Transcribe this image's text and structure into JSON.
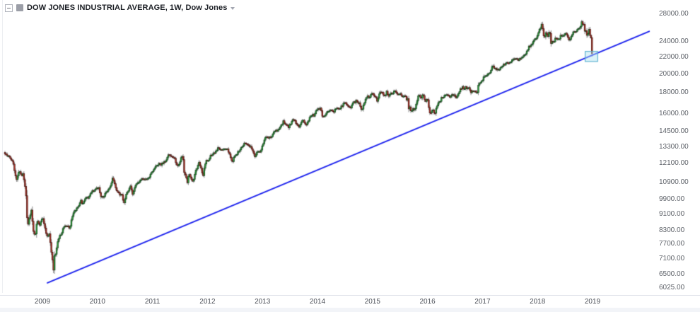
{
  "header": {
    "title": "DOW JONES INDUSTRIAL AVERAGE, 1W, Dow Jones",
    "icons": {
      "collapse": "minus-box-icon",
      "instrument": "gray-square-glyph",
      "more": "caret-down-icon"
    }
  },
  "chart_data": {
    "type": "candlestick",
    "title": "DOW JONES INDUSTRIAL AVERAGE",
    "interval": "1W",
    "source": "Dow Jones",
    "scale": "logarithmic",
    "grid": "off",
    "x_axis": {
      "tick_labels": [
        "2009",
        "2010",
        "2011",
        "2012",
        "2013",
        "2014",
        "2015",
        "2016",
        "2017",
        "2018",
        "2019"
      ],
      "data_start_year": 2008.3,
      "data_end_year": 2018.99
    },
    "y_axis": {
      "side": "right",
      "ticks": [
        {
          "price": 28000,
          "label": "28000.00"
        },
        {
          "price": 24000,
          "label": "24000.00"
        },
        {
          "price": 22000,
          "label": "22000.00"
        },
        {
          "price": 20000,
          "label": "20000.00"
        },
        {
          "price": 18000,
          "label": "18000.00"
        },
        {
          "price": 16000,
          "label": "16000.00"
        },
        {
          "price": 14500,
          "label": "14500.00"
        },
        {
          "price": 13300,
          "label": "13300.00"
        },
        {
          "price": 12100,
          "label": "12100.00"
        },
        {
          "price": 10900,
          "label": "10900.00"
        },
        {
          "price": 9900,
          "label": "9900.00"
        },
        {
          "price": 9100,
          "label": "9100.00"
        },
        {
          "price": 8300,
          "label": "8300.00"
        },
        {
          "price": 7700,
          "label": "7700.00"
        },
        {
          "price": 7100,
          "label": "7100.00"
        },
        {
          "price": 6500,
          "label": "6500.00"
        },
        {
          "price": 6025,
          "label": "6025.00"
        }
      ],
      "visible_range": [
        5740,
        30370
      ]
    },
    "style": {
      "up": "#2da33c",
      "up_border": "#173a1c",
      "down": "#b03a2e",
      "down_border": "#3c120e",
      "wick": "#8c8c8c",
      "background": "#ffffff"
    },
    "trendline": {
      "from": [
        2009.09,
        6202
      ],
      "to": [
        2020.03,
        25420
      ],
      "color": "#2026ee",
      "width": 2
    },
    "highlight_box": {
      "t_from": 2018.86,
      "t_to": 2019.1,
      "price_from": 21430,
      "price_to": 22760,
      "border_color": "#4aa8cc",
      "fill_color": "rgba(176,226,240,0.45)"
    },
    "weekly_close_anchors": [
      [
        2008.3,
        12891
      ],
      [
        2008.36,
        12638
      ],
      [
        2008.42,
        12479
      ],
      [
        2008.47,
        12209
      ],
      [
        2008.5,
        11346
      ],
      [
        2008.53,
        11100
      ],
      [
        2008.58,
        11628
      ],
      [
        2008.62,
        11326
      ],
      [
        2008.65,
        11422
      ],
      [
        2008.7,
        10325
      ],
      [
        2008.73,
        8451
      ],
      [
        2008.76,
        8852
      ],
      [
        2008.8,
        9325
      ],
      [
        2008.83,
        8378
      ],
      [
        2008.87,
        8046
      ],
      [
        2008.9,
        8829
      ],
      [
        2008.93,
        8635
      ],
      [
        2008.96,
        8579
      ],
      [
        2009.0,
        9035
      ],
      [
        2009.03,
        8599
      ],
      [
        2009.06,
        8281
      ],
      [
        2009.08,
        8078
      ],
      [
        2009.1,
        8001
      ],
      [
        2009.12,
        8280
      ],
      [
        2009.14,
        7850
      ],
      [
        2009.16,
        7366
      ],
      [
        2009.18,
        7063
      ],
      [
        2009.2,
        6627
      ],
      [
        2009.22,
        7224
      ],
      [
        2009.24,
        7278
      ],
      [
        2009.27,
        7776
      ],
      [
        2009.3,
        8018
      ],
      [
        2009.35,
        8212
      ],
      [
        2009.4,
        8574
      ],
      [
        2009.45,
        8500
      ],
      [
        2009.5,
        8447
      ],
      [
        2009.55,
        9093
      ],
      [
        2009.6,
        9321
      ],
      [
        2009.65,
        9505
      ],
      [
        2009.7,
        9820
      ],
      [
        2009.73,
        9665
      ],
      [
        2009.78,
        10023
      ],
      [
        2009.83,
        9972
      ],
      [
        2009.88,
        10328
      ],
      [
        2009.92,
        10388
      ],
      [
        2009.98,
        10520
      ],
      [
        2010.02,
        10618
      ],
      [
        2010.07,
        10012
      ],
      [
        2010.12,
        10099
      ],
      [
        2010.18,
        10403
      ],
      [
        2010.23,
        10625
      ],
      [
        2010.28,
        11204
      ],
      [
        2010.33,
        10620
      ],
      [
        2010.36,
        10380
      ],
      [
        2010.4,
        10193
      ],
      [
        2010.44,
        10211
      ],
      [
        2010.48,
        9686
      ],
      [
        2010.52,
        10198
      ],
      [
        2010.56,
        10424
      ],
      [
        2010.6,
        10654
      ],
      [
        2010.64,
        10213
      ],
      [
        2010.68,
        10608
      ],
      [
        2010.72,
        10829
      ],
      [
        2010.78,
        11006
      ],
      [
        2010.83,
        11118
      ],
      [
        2010.88,
        11092
      ],
      [
        2010.93,
        11192
      ],
      [
        2011.0,
        11578
      ],
      [
        2011.06,
        11892
      ],
      [
        2011.12,
        12092
      ],
      [
        2011.16,
        12044
      ],
      [
        2011.2,
        12221
      ],
      [
        2011.25,
        12320
      ],
      [
        2011.3,
        12810
      ],
      [
        2011.35,
        12596
      ],
      [
        2011.4,
        12512
      ],
      [
        2011.45,
        11935
      ],
      [
        2011.49,
        12004
      ],
      [
        2011.52,
        12582
      ],
      [
        2011.55,
        12724
      ],
      [
        2011.58,
        11445
      ],
      [
        2011.61,
        11269
      ],
      [
        2011.64,
        10818
      ],
      [
        2011.66,
        11509
      ],
      [
        2011.69,
        11240
      ],
      [
        2011.72,
        10913
      ],
      [
        2011.75,
        11103
      ],
      [
        2011.78,
        11644
      ],
      [
        2011.81,
        11809
      ],
      [
        2011.84,
        12231
      ],
      [
        2011.87,
        11983
      ],
      [
        2011.89,
        11796
      ],
      [
        2011.92,
        11232
      ],
      [
        2011.95,
        12019
      ],
      [
        2011.98,
        12294
      ],
      [
        2012.01,
        12218
      ],
      [
        2012.05,
        12660
      ],
      [
        2012.1,
        12801
      ],
      [
        2012.15,
        12922
      ],
      [
        2012.2,
        13233
      ],
      [
        2012.25,
        13080
      ],
      [
        2012.3,
        13060
      ],
      [
        2012.35,
        13228
      ],
      [
        2012.4,
        12821
      ],
      [
        2012.43,
        12454
      ],
      [
        2012.45,
        12119
      ],
      [
        2012.48,
        12554
      ],
      [
        2012.53,
        12777
      ],
      [
        2012.58,
        13076
      ],
      [
        2012.63,
        13306
      ],
      [
        2012.68,
        13593
      ],
      [
        2012.72,
        13437
      ],
      [
        2012.77,
        13329
      ],
      [
        2012.82,
        13107
      ],
      [
        2012.86,
        12588
      ],
      [
        2012.89,
        12810
      ],
      [
        2012.93,
        13026
      ],
      [
        2012.97,
        12938
      ],
      [
        2013.0,
        13435
      ],
      [
        2013.05,
        13993
      ],
      [
        2013.1,
        13982
      ],
      [
        2013.15,
        14009
      ],
      [
        2013.2,
        14397
      ],
      [
        2013.25,
        14547
      ],
      [
        2013.3,
        14613
      ],
      [
        2013.34,
        14973
      ],
      [
        2013.38,
        15354
      ],
      [
        2013.42,
        15118
      ],
      [
        2013.45,
        15070
      ],
      [
        2013.47,
        14799
      ],
      [
        2013.51,
        15136
      ],
      [
        2013.55,
        15468
      ],
      [
        2013.59,
        15425
      ],
      [
        2013.62,
        15081
      ],
      [
        2013.66,
        14810
      ],
      [
        2013.7,
        15301
      ],
      [
        2013.73,
        15451
      ],
      [
        2013.76,
        15258
      ],
      [
        2013.79,
        15072
      ],
      [
        2013.82,
        15237
      ],
      [
        2013.85,
        15570
      ],
      [
        2013.88,
        15762
      ],
      [
        2013.91,
        16086
      ],
      [
        2013.94,
        15755
      ],
      [
        2013.97,
        16221
      ],
      [
        2014.0,
        16478
      ],
      [
        2014.04,
        16437
      ],
      [
        2014.06,
        16459
      ],
      [
        2014.08,
        15879
      ],
      [
        2014.1,
        15699
      ],
      [
        2014.13,
        15794
      ],
      [
        2014.16,
        16154
      ],
      [
        2014.19,
        16322
      ],
      [
        2014.22,
        16303
      ],
      [
        2014.26,
        16413
      ],
      [
        2014.29,
        16027
      ],
      [
        2014.32,
        16409
      ],
      [
        2014.36,
        16583
      ],
      [
        2014.4,
        16491
      ],
      [
        2014.44,
        16717
      ],
      [
        2014.48,
        16947
      ],
      [
        2014.52,
        17068
      ],
      [
        2014.56,
        16569
      ],
      [
        2014.6,
        16554
      ],
      [
        2014.64,
        17001
      ],
      [
        2014.68,
        17098
      ],
      [
        2014.71,
        17280
      ],
      [
        2014.74,
        16987
      ],
      [
        2014.76,
        17113
      ],
      [
        2014.79,
        16544
      ],
      [
        2014.81,
        16380
      ],
      [
        2014.84,
        16805
      ],
      [
        2014.87,
        17390
      ],
      [
        2014.9,
        17635
      ],
      [
        2014.92,
        17811
      ],
      [
        2014.94,
        17281
      ],
      [
        2014.96,
        17805
      ],
      [
        2014.99,
        18054
      ],
      [
        2015.02,
        17833
      ],
      [
        2015.06,
        17512
      ],
      [
        2015.09,
        17165
      ],
      [
        2015.12,
        17824
      ],
      [
        2015.16,
        18140
      ],
      [
        2015.19,
        17857
      ],
      [
        2015.23,
        17749
      ],
      [
        2015.26,
        18128
      ],
      [
        2015.29,
        17713
      ],
      [
        2015.33,
        18058
      ],
      [
        2015.36,
        17826
      ],
      [
        2015.39,
        18232
      ],
      [
        2015.43,
        18011
      ],
      [
        2015.47,
        17899
      ],
      [
        2015.51,
        17947
      ],
      [
        2015.55,
        17568
      ],
      [
        2015.59,
        17690
      ],
      [
        2015.62,
        17373
      ],
      [
        2015.64,
        17477
      ],
      [
        2015.66,
        16460
      ],
      [
        2015.68,
        16643
      ],
      [
        2015.71,
        16102
      ],
      [
        2015.73,
        16433
      ],
      [
        2015.75,
        16385
      ],
      [
        2015.77,
        16472
      ],
      [
        2015.8,
        17084
      ],
      [
        2015.83,
        17646
      ],
      [
        2015.86,
        17910
      ],
      [
        2015.88,
        17245
      ],
      [
        2015.9,
        17824
      ],
      [
        2015.93,
        17798
      ],
      [
        2015.95,
        17265
      ],
      [
        2015.97,
        17128
      ],
      [
        2016.0,
        17425
      ],
      [
        2016.03,
        16346
      ],
      [
        2016.05,
        15988
      ],
      [
        2016.07,
        16094
      ],
      [
        2016.09,
        16466
      ],
      [
        2016.11,
        16205
      ],
      [
        2016.13,
        15974
      ],
      [
        2016.15,
        16392
      ],
      [
        2016.17,
        16640
      ],
      [
        2016.2,
        17007
      ],
      [
        2016.23,
        17213
      ],
      [
        2016.26,
        17602
      ],
      [
        2016.29,
        17516
      ],
      [
        2016.32,
        17793
      ],
      [
        2016.35,
        17774
      ],
      [
        2016.38,
        17741
      ],
      [
        2016.41,
        17535
      ],
      [
        2016.44,
        17873
      ],
      [
        2016.47,
        17807
      ],
      [
        2016.49,
        17865
      ],
      [
        2016.51,
        17675
      ],
      [
        2016.53,
        17401
      ],
      [
        2016.55,
        17949
      ],
      [
        2016.58,
        18147
      ],
      [
        2016.61,
        18517
      ],
      [
        2016.64,
        18571
      ],
      [
        2016.67,
        18432
      ],
      [
        2016.7,
        18576
      ],
      [
        2016.73,
        18395
      ],
      [
        2016.76,
        18492
      ],
      [
        2016.79,
        18085
      ],
      [
        2016.82,
        18261
      ],
      [
        2016.85,
        18240
      ],
      [
        2016.88,
        18138
      ],
      [
        2016.9,
        17888
      ],
      [
        2016.92,
        18848
      ],
      [
        2016.94,
        18868
      ],
      [
        2016.96,
        19152
      ],
      [
        2016.99,
        19170
      ],
      [
        2017.02,
        19757
      ],
      [
        2017.05,
        19886
      ],
      [
        2017.08,
        19964
      ],
      [
        2017.11,
        20094
      ],
      [
        2017.14,
        20269
      ],
      [
        2017.18,
        20902
      ],
      [
        2017.22,
        20656
      ],
      [
        2017.26,
        20453
      ],
      [
        2017.3,
        20548
      ],
      [
        2017.34,
        20897
      ],
      [
        2017.38,
        21007
      ],
      [
        2017.42,
        21272
      ],
      [
        2017.46,
        21395
      ],
      [
        2017.5,
        21414
      ],
      [
        2017.54,
        21580
      ],
      [
        2017.58,
        21830
      ],
      [
        2017.62,
        21858
      ],
      [
        2017.65,
        21675
      ],
      [
        2017.68,
        21814
      ],
      [
        2017.72,
        21798
      ],
      [
        2017.75,
        22268
      ],
      [
        2017.78,
        22350
      ],
      [
        2017.81,
        22774
      ],
      [
        2017.84,
        23329
      ],
      [
        2017.87,
        23434
      ],
      [
        2017.9,
        23558
      ],
      [
        2017.93,
        24232
      ],
      [
        2017.96,
        24329
      ],
      [
        2017.99,
        24719
      ],
      [
        2018.02,
        25296
      ],
      [
        2018.04,
        25803
      ],
      [
        2018.06,
        26072
      ],
      [
        2018.08,
        26617
      ],
      [
        2018.1,
        25521
      ],
      [
        2018.12,
        24191
      ],
      [
        2018.14,
        25219
      ],
      [
        2018.16,
        25310
      ],
      [
        2018.18,
        24538
      ],
      [
        2018.21,
        25336
      ],
      [
        2018.23,
        24947
      ],
      [
        2018.25,
        23533
      ],
      [
        2018.27,
        24103
      ],
      [
        2018.3,
        23933
      ],
      [
        2018.32,
        24360
      ],
      [
        2018.34,
        24463
      ],
      [
        2018.36,
        24311
      ],
      [
        2018.39,
        24263
      ],
      [
        2018.42,
        24831
      ],
      [
        2018.45,
        24715
      ],
      [
        2018.48,
        24753
      ],
      [
        2018.5,
        25317
      ],
      [
        2018.53,
        25090
      ],
      [
        2018.55,
        24581
      ],
      [
        2018.57,
        24271
      ],
      [
        2018.6,
        24456
      ],
      [
        2018.63,
        25019
      ],
      [
        2018.66,
        25451
      ],
      [
        2018.69,
        25463
      ],
      [
        2018.72,
        25669
      ],
      [
        2018.75,
        25965
      ],
      [
        2018.78,
        26155
      ],
      [
        2018.8,
        26744
      ],
      [
        2018.82,
        26458
      ],
      [
        2018.84,
        26447
      ],
      [
        2018.86,
        25340
      ],
      [
        2018.88,
        25444
      ],
      [
        2018.9,
        24688
      ],
      [
        2018.92,
        25271
      ],
      [
        2018.93,
        25989
      ],
      [
        2018.95,
        25413
      ],
      [
        2018.96,
        24286
      ],
      [
        2018.975,
        24400
      ],
      [
        2018.99,
        22445
      ]
    ]
  }
}
